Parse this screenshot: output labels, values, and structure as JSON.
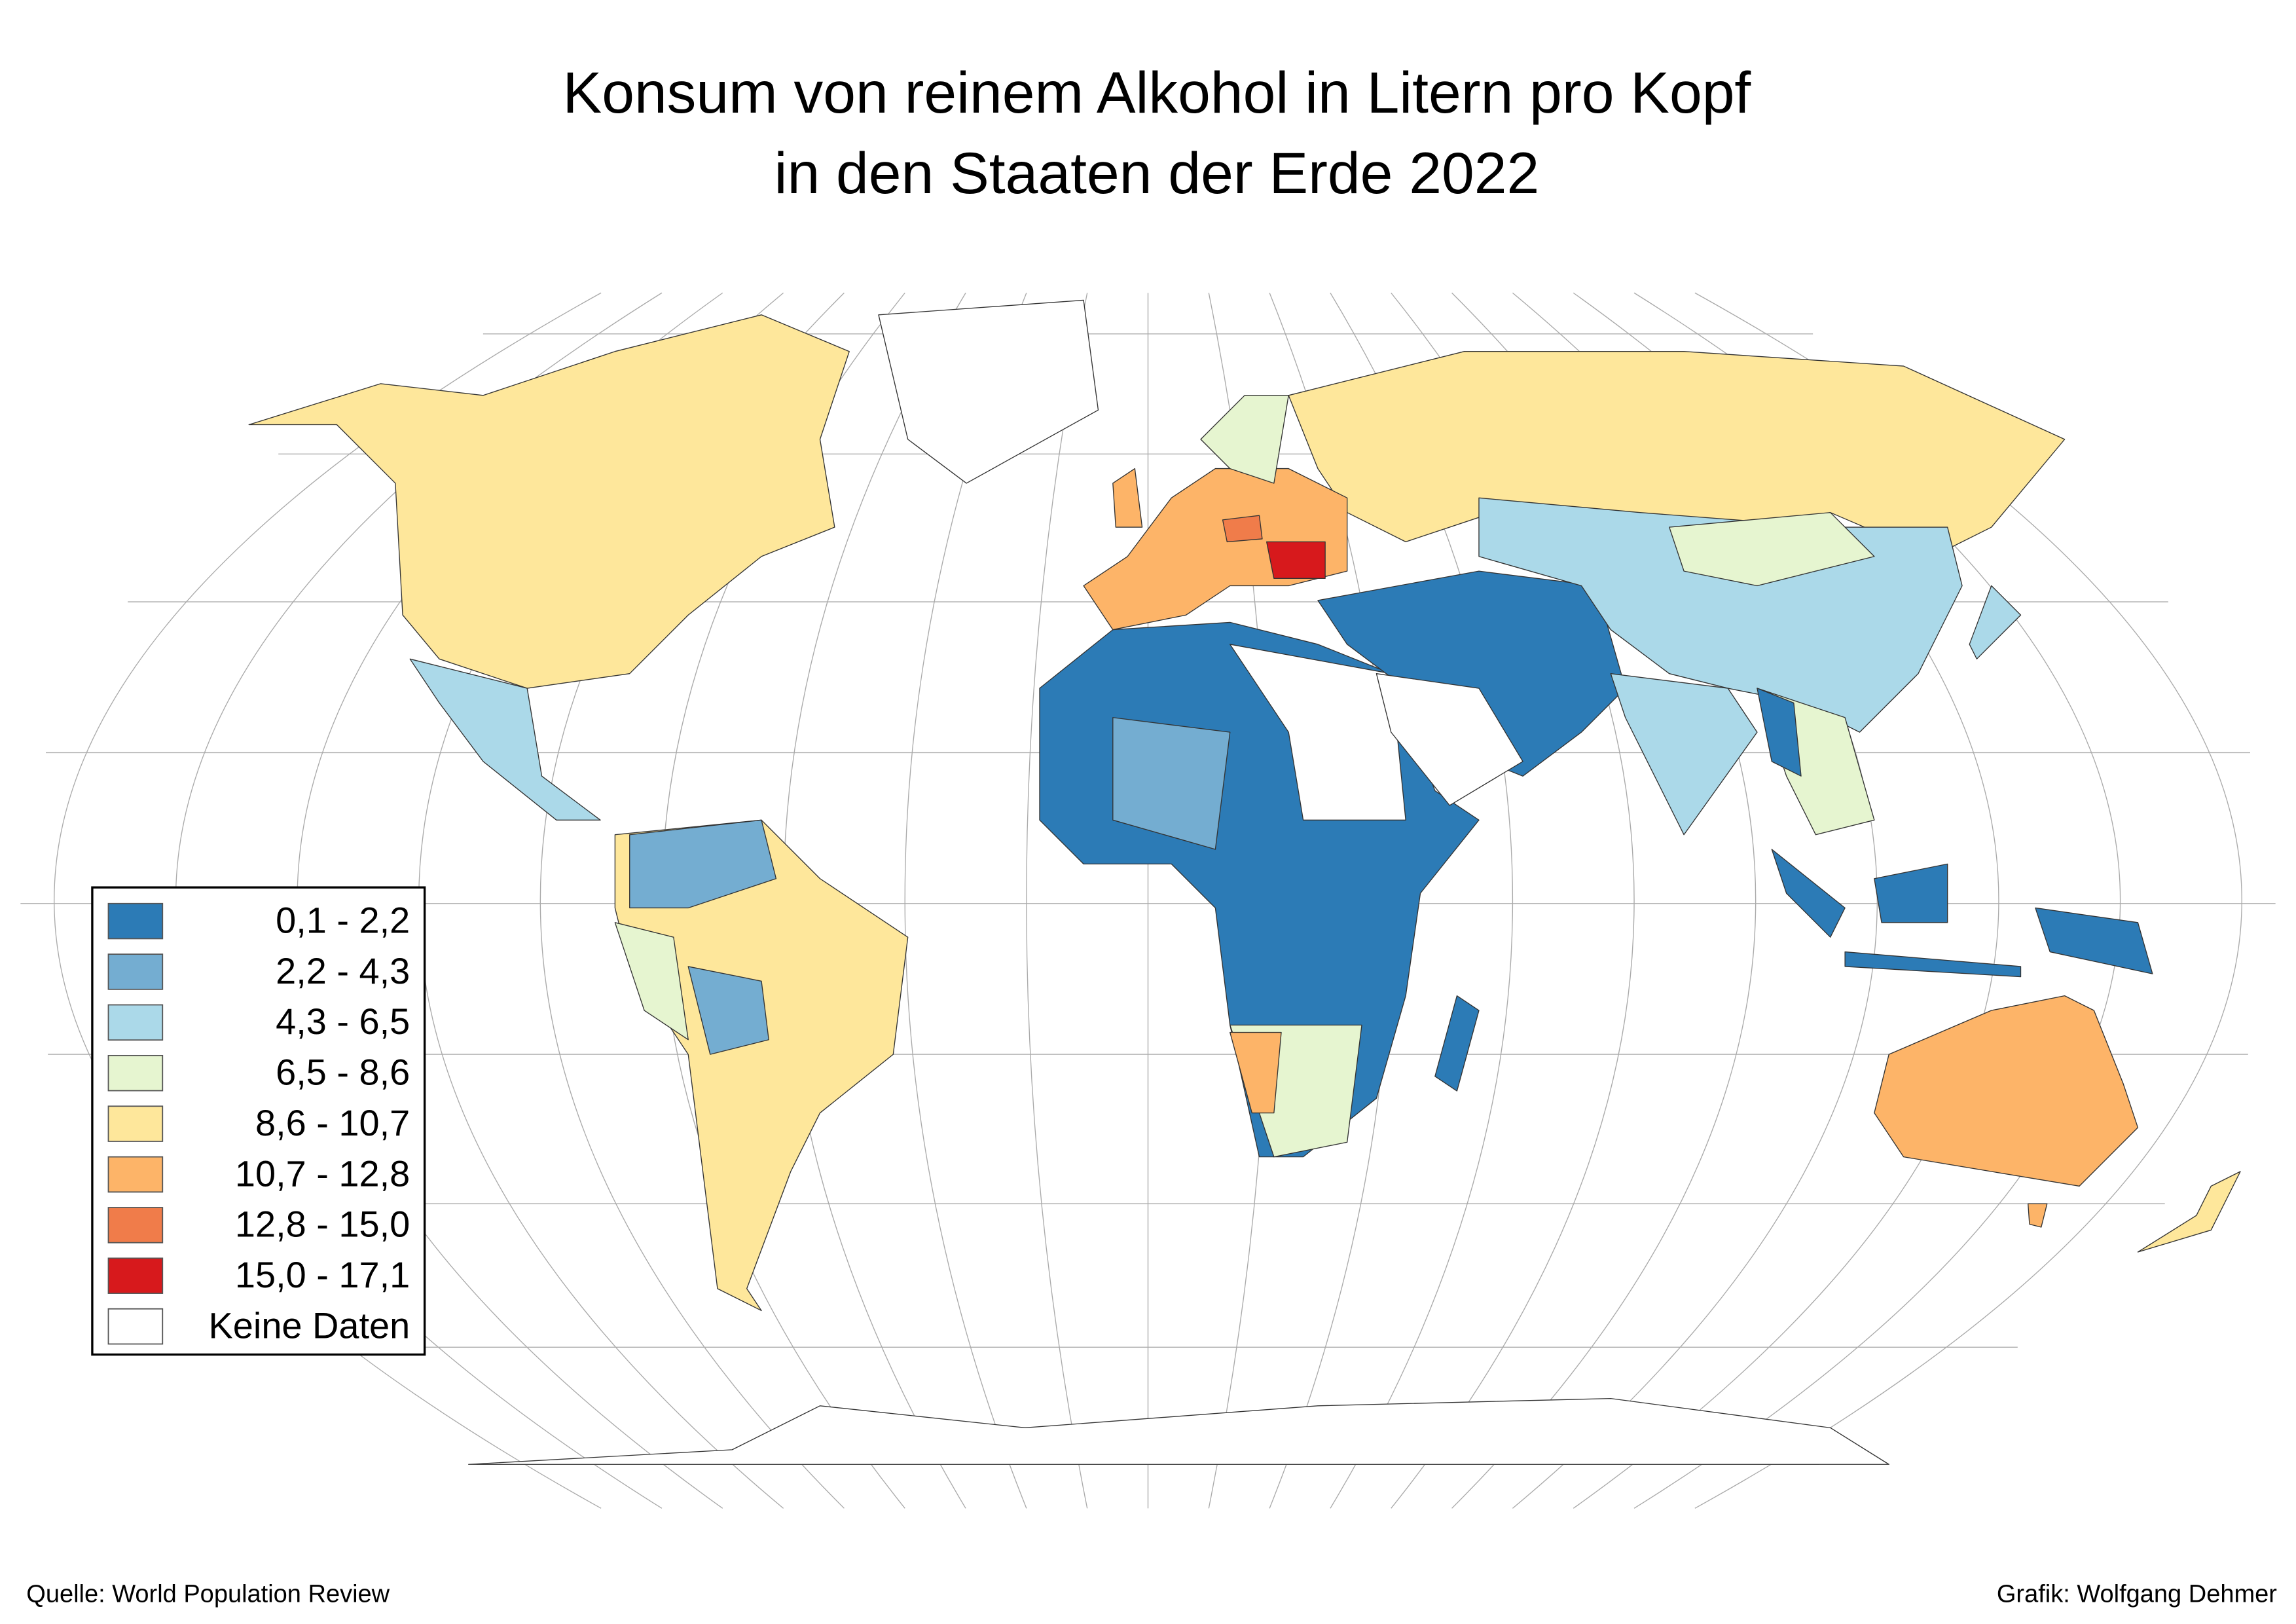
{
  "title": [
    "Konsum von reinem Alkohol in Litern pro Kopf",
    "in den Staaten der Erde 2022"
  ],
  "legend": {
    "items": [
      {
        "label": "0,1 - 2,2",
        "color": "#2c7bb6"
      },
      {
        "label": "2,2 - 4,3",
        "color": "#74add1"
      },
      {
        "label": "4,3 - 6,5",
        "color": "#abd9e9"
      },
      {
        "label": "6,5 - 8,6",
        "color": "#e6f5d0"
      },
      {
        "label": "8,6 - 10,7",
        "color": "#fee79b"
      },
      {
        "label": "10,7 - 12,8",
        "color": "#fdb468"
      },
      {
        "label": "12,8 - 15,0",
        "color": "#f07c4a"
      },
      {
        "label": "15,0 - 17,1",
        "color": "#d7191c"
      },
      {
        "label": "Keine Daten",
        "color": "#ffffff"
      }
    ]
  },
  "source": "Quelle: World Population Review",
  "credit": "Grafik: Wolfgang Dehmer"
}
